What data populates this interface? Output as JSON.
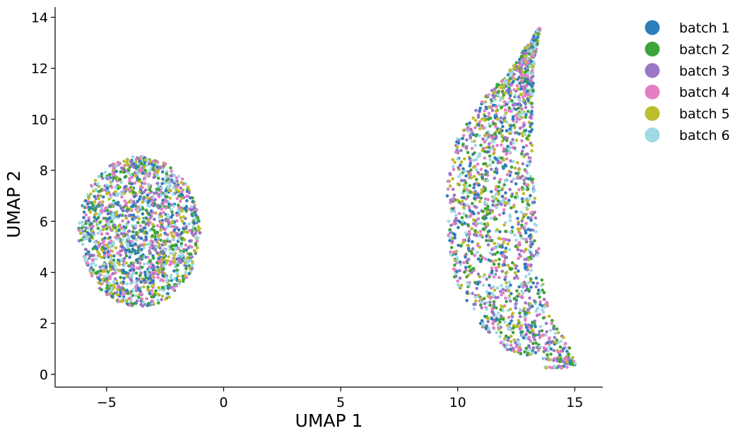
{
  "chart_data": {
    "type": "scatter",
    "title": "",
    "xlabel": "UMAP 1",
    "ylabel": "UMAP 2",
    "xlim": [
      -7.2,
      16.2
    ],
    "ylim": [
      -0.5,
      14.4
    ],
    "xticks": [
      -5,
      0,
      5,
      10,
      15
    ],
    "xtick_labels": [
      "−5",
      "0",
      "5",
      "10",
      "15"
    ],
    "yticks": [
      0,
      2,
      4,
      6,
      8,
      10,
      12,
      14
    ],
    "ytick_labels": [
      "0",
      "2",
      "4",
      "6",
      "8",
      "10",
      "12",
      "14"
    ],
    "grid": false,
    "legend_position": "outside-top-right",
    "series": [
      {
        "name": "batch 1",
        "color": "#2e7ebc"
      },
      {
        "name": "batch 2",
        "color": "#3ca43a"
      },
      {
        "name": "batch 3",
        "color": "#9b76c6"
      },
      {
        "name": "batch 4",
        "color": "#e57fc5"
      },
      {
        "name": "batch 5",
        "color": "#bcbd2c"
      },
      {
        "name": "batch 6",
        "color": "#9ed9e5"
      }
    ],
    "clusters": [
      {
        "shape": "ellipse",
        "center": [
          -3.6,
          5.6
        ],
        "radius_x": 2.6,
        "radius_y": 2.95,
        "note": "points from all six batches well mixed"
      },
      {
        "shape": "crescent",
        "outer_edge": [
          [
            13.55,
            13.7
          ],
          [
            12.3,
            12.0
          ],
          [
            11.0,
            10.7
          ],
          [
            10.0,
            9.3
          ],
          [
            9.55,
            7.5
          ],
          [
            9.55,
            5.5
          ],
          [
            9.9,
            3.6
          ],
          [
            10.9,
            2.0
          ],
          [
            12.2,
            0.9
          ],
          [
            13.6,
            0.3
          ],
          [
            15.05,
            0.35
          ]
        ],
        "inner_edge": [
          [
            13.55,
            13.7
          ],
          [
            13.25,
            12.0
          ],
          [
            13.2,
            10.0
          ],
          [
            13.2,
            8.0
          ],
          [
            13.4,
            6.0
          ],
          [
            13.55,
            4.0
          ],
          [
            14.05,
            2.2
          ],
          [
            14.8,
            1.0
          ],
          [
            15.05,
            0.35
          ]
        ],
        "note": "points from all six batches well mixed"
      }
    ]
  }
}
